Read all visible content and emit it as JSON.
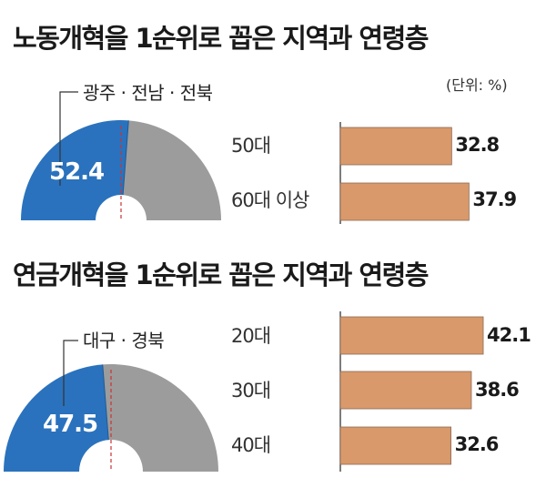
{
  "colors": {
    "region_share": "#2a72bd",
    "remainder": "#9c9c9c",
    "bar": "#d9996a",
    "bar_edge": "#8a6a55",
    "axis": "#444444",
    "divider": "#cc3333"
  },
  "unit": "(단위: %)",
  "chart_data": [
    {
      "type": "bar",
      "title": "노동개혁을 1순위로 꼽은 지역과 연령층",
      "gauge": {
        "label": "광주 · 전남 · 전북",
        "value": 52.4,
        "display": "52.4"
      },
      "categories": [
        "50대",
        "60대 이상"
      ],
      "values": [
        32.8,
        37.9
      ],
      "value_labels": [
        "32.8",
        "37.9"
      ],
      "orientation": "horizontal",
      "xlim": [
        0,
        50
      ],
      "grid": false
    },
    {
      "type": "bar",
      "title": "연금개혁을 1순위로 꼽은 지역과 연령층",
      "gauge": {
        "label": "대구 · 경북",
        "value": 47.5,
        "display": "47.5"
      },
      "categories": [
        "20대",
        "30대",
        "40대"
      ],
      "values": [
        42.1,
        38.6,
        32.6
      ],
      "value_labels": [
        "42.1",
        "38.6",
        "32.6"
      ],
      "orientation": "horizontal",
      "xlim": [
        0,
        50
      ],
      "grid": false
    }
  ]
}
